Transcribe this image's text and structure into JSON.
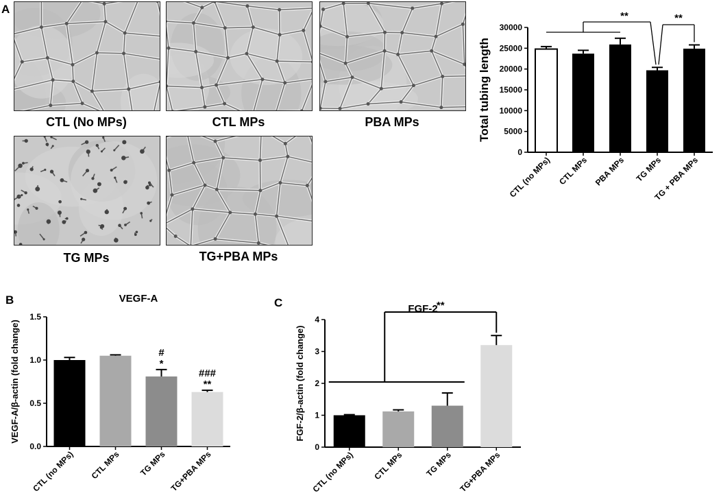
{
  "panels": {
    "a": "A",
    "b": "B",
    "c": "C"
  },
  "micrographs": [
    {
      "caption": "CTL (No MPs)",
      "style": "mesh"
    },
    {
      "caption": "CTL MPs",
      "style": "mesh"
    },
    {
      "caption": "PBA MPs",
      "style": "mesh"
    },
    {
      "caption": "TG MPs",
      "style": "sparse"
    },
    {
      "caption": "TG+PBA MPs",
      "style": "mesh"
    }
  ],
  "chart_data": [
    {
      "type": "bar",
      "panel": "A",
      "title": "",
      "xlabel": "",
      "ylabel": "Total tubing length",
      "ylim": [
        0,
        30000
      ],
      "yticks": [
        0,
        5000,
        10000,
        15000,
        20000,
        25000,
        30000
      ],
      "categories": [
        "CTL (no MPs)",
        "CTL MPs",
        "PBA MPs",
        "TG MPs",
        "TG + PBA MPs"
      ],
      "values": [
        24800,
        23700,
        25900,
        19700,
        24900
      ],
      "errors": [
        600,
        800,
        1500,
        700,
        900
      ],
      "bar_fills": [
        "#ffffff",
        "#000000",
        "#000000",
        "#000000",
        "#000000"
      ],
      "annotations": [
        {
          "text": "**",
          "between": "CTL (no MPs), CTL MPs, PBA MPs vs TG MPs"
        },
        {
          "text": "**",
          "between": "TG MPs vs TG + PBA MPs"
        }
      ]
    },
    {
      "type": "bar",
      "panel": "B",
      "title": "VEGF-A",
      "xlabel": "",
      "ylabel": "VEGF-A/β-actin (fold change)",
      "ylim": [
        0,
        1.5
      ],
      "yticks": [
        "0.0",
        "0.5",
        "1.0",
        "1.5"
      ],
      "categories": [
        "CTL (no MPs)",
        "CTL MPs",
        "TG MPs",
        "TG+PBA MPs"
      ],
      "values": [
        1.0,
        1.05,
        0.81,
        0.63
      ],
      "errors": [
        0.03,
        0.01,
        0.08,
        0.02
      ],
      "bar_fills": [
        "#000000",
        "#a9a9a9",
        "#8c8c8c",
        "#dcdcdc"
      ],
      "annotations": [
        {
          "text": "#",
          "category": "TG MPs",
          "line": 1
        },
        {
          "text": "*",
          "category": "TG MPs",
          "line": 2
        },
        {
          "text": "###",
          "category": "TG+PBA MPs",
          "line": 1
        },
        {
          "text": "**",
          "category": "TG+PBA MPs",
          "line": 2
        }
      ]
    },
    {
      "type": "bar",
      "panel": "C",
      "title": "FGF-2",
      "xlabel": "",
      "ylabel": "FGF-2/β-actin (fold change)",
      "ylim": [
        0,
        4
      ],
      "yticks": [
        0,
        1,
        2,
        3,
        4
      ],
      "categories": [
        "CTL (no MPs)",
        "CTL MPs",
        "TG MPs",
        "TG+PBA MPs"
      ],
      "values": [
        1.0,
        1.12,
        1.3,
        3.2
      ],
      "errors": [
        0.02,
        0.05,
        0.4,
        0.3
      ],
      "bar_fills": [
        "#000000",
        "#a9a9a9",
        "#8c8c8c",
        "#dcdcdc"
      ],
      "annotations": [
        {
          "text": "**",
          "between": "CTL (no MPs), CTL MPs, TG MPs vs TG+PBA MPs"
        }
      ]
    }
  ]
}
